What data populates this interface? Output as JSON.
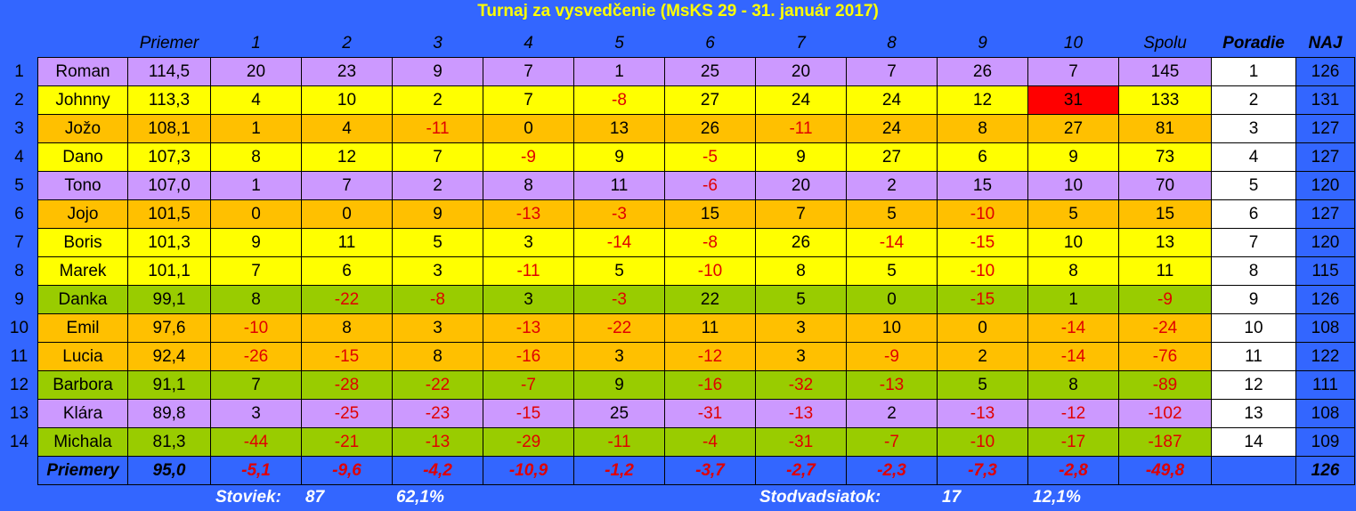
{
  "title": "Turnaj za vysvedčenie (MsKS 29 - 31. január 2017)",
  "header": {
    "priemer": "Priemer",
    "rounds": [
      "1",
      "2",
      "3",
      "4",
      "5",
      "6",
      "7",
      "8",
      "9",
      "10"
    ],
    "spolu": "Spolu",
    "poradie": "Poradie",
    "naj": "NAJ"
  },
  "rows": [
    {
      "index": "1",
      "name": "Roman",
      "priemer": "114,5",
      "rounds": [
        "20",
        "23",
        "9",
        "7",
        "1",
        "25",
        "20",
        "7",
        "26",
        "7"
      ],
      "spolu": "145",
      "poradie": "1",
      "naj": "126",
      "color": "#cc99ff"
    },
    {
      "index": "2",
      "name": "Johnny",
      "priemer": "113,3",
      "rounds": [
        "4",
        "10",
        "2",
        "7",
        "-8",
        "27",
        "24",
        "24",
        "12",
        "31"
      ],
      "spolu": "133",
      "poradie": "2",
      "naj": "131",
      "color": "#ffff00"
    },
    {
      "index": "3",
      "name": "Jožo",
      "priemer": "108,1",
      "rounds": [
        "1",
        "4",
        "-11",
        "0",
        "13",
        "26",
        "-11",
        "24",
        "8",
        "27"
      ],
      "spolu": "81",
      "poradie": "3",
      "naj": "127",
      "color": "#ffc000"
    },
    {
      "index": "4",
      "name": "Dano",
      "priemer": "107,3",
      "rounds": [
        "8",
        "12",
        "7",
        "-9",
        "9",
        "-5",
        "9",
        "27",
        "6",
        "9"
      ],
      "spolu": "73",
      "poradie": "4",
      "naj": "127",
      "color": "#ffff00"
    },
    {
      "index": "5",
      "name": "Tono",
      "priemer": "107,0",
      "rounds": [
        "1",
        "7",
        "2",
        "8",
        "11",
        "-6",
        "20",
        "2",
        "15",
        "10"
      ],
      "spolu": "70",
      "poradie": "5",
      "naj": "120",
      "color": "#cc99ff"
    },
    {
      "index": "6",
      "name": "Jojo",
      "priemer": "101,5",
      "rounds": [
        "0",
        "0",
        "9",
        "-13",
        "-3",
        "15",
        "7",
        "5",
        "-10",
        "5"
      ],
      "spolu": "15",
      "poradie": "6",
      "naj": "127",
      "color": "#ffc000"
    },
    {
      "index": "7",
      "name": "Boris",
      "priemer": "101,3",
      "rounds": [
        "9",
        "11",
        "5",
        "3",
        "-14",
        "-8",
        "26",
        "-14",
        "-15",
        "10"
      ],
      "spolu": "13",
      "poradie": "7",
      "naj": "120",
      "color": "#ffff00"
    },
    {
      "index": "8",
      "name": "Marek",
      "priemer": "101,1",
      "rounds": [
        "7",
        "6",
        "3",
        "-11",
        "5",
        "-10",
        "8",
        "5",
        "-10",
        "8"
      ],
      "spolu": "11",
      "poradie": "8",
      "naj": "115",
      "color": "#ffff00"
    },
    {
      "index": "9",
      "name": "Danka",
      "priemer": "99,1",
      "rounds": [
        "8",
        "-22",
        "-8",
        "3",
        "-3",
        "22",
        "5",
        "0",
        "-15",
        "1"
      ],
      "spolu": "-9",
      "poradie": "9",
      "naj": "126",
      "color": "#99cc00"
    },
    {
      "index": "10",
      "name": "Emil",
      "priemer": "97,6",
      "rounds": [
        "-10",
        "8",
        "3",
        "-13",
        "-22",
        "11",
        "3",
        "10",
        "0",
        "-14"
      ],
      "spolu": "-24",
      "poradie": "10",
      "naj": "108",
      "color": "#ffc000"
    },
    {
      "index": "11",
      "name": "Lucia",
      "priemer": "92,4",
      "rounds": [
        "-26",
        "-15",
        "8",
        "-16",
        "3",
        "-12",
        "3",
        "-9",
        "2",
        "-14"
      ],
      "spolu": "-76",
      "poradie": "11",
      "naj": "122",
      "color": "#ffc000"
    },
    {
      "index": "12",
      "name": "Barbora",
      "priemer": "91,1",
      "rounds": [
        "7",
        "-28",
        "-22",
        "-7",
        "9",
        "-16",
        "-32",
        "-13",
        "5",
        "8"
      ],
      "spolu": "-89",
      "poradie": "12",
      "naj": "111",
      "color": "#99cc00"
    },
    {
      "index": "13",
      "name": "Klára",
      "priemer": "89,8",
      "rounds": [
        "3",
        "-25",
        "-23",
        "-15",
        "25",
        "-31",
        "-13",
        "2",
        "-13",
        "-12"
      ],
      "spolu": "-102",
      "poradie": "13",
      "naj": "108",
      "color": "#cc99ff"
    },
    {
      "index": "14",
      "name": "Michala",
      "priemer": "81,3",
      "rounds": [
        "-44",
        "-21",
        "-13",
        "-29",
        "-11",
        "-4",
        "-31",
        "-7",
        "-10",
        "-17"
      ],
      "spolu": "-187",
      "poradie": "14",
      "naj": "109",
      "color": "#99cc00"
    }
  ],
  "averages": {
    "label": "Priemery",
    "priemer": "95,0",
    "rounds": [
      "-5,1",
      "-9,6",
      "-4,2",
      "-10,9",
      "-1,2",
      "-3,7",
      "-2,7",
      "-2,3",
      "-7,3",
      "-2,8"
    ],
    "spolu": "-49,8",
    "naj": "126"
  },
  "footer": [
    {
      "label": "Stoviek:",
      "count": "87",
      "percent": "62,1%"
    },
    {
      "label": "Stodvadsiatok:",
      "count": "17",
      "percent": "12,1%"
    }
  ]
}
